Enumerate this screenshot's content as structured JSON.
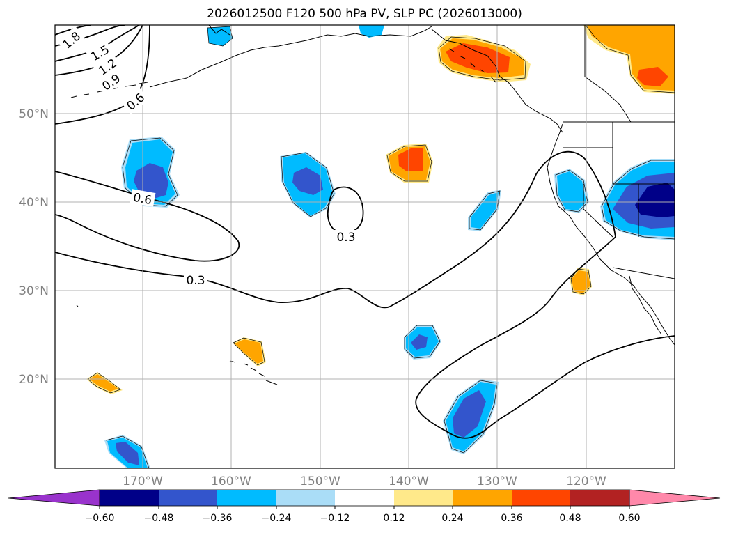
{
  "title": "2026012500 F120 500 hPa PV, SLP PC (2026013000)",
  "lat_labels": [
    "50°N",
    "40°N",
    "30°N",
    "20°N"
  ],
  "lon_labels": [
    "170°W",
    "160°W",
    "150°W",
    "140°W",
    "130°W",
    "120°W"
  ],
  "contour_labels": [
    "1.8",
    "1.5",
    "1.2",
    "0.9",
    "0.6",
    "0.6",
    "0.3",
    "0.3"
  ],
  "colorbar": {
    "ticks": [
      "−0.60",
      "−0.48",
      "−0.36",
      "−0.24",
      "−0.12",
      "0.12",
      "0.24",
      "0.36",
      "0.48",
      "0.60"
    ],
    "colors": [
      "#9933cc",
      "#000088",
      "#3355cc",
      "#00bbff",
      "#aaddf7",
      "#ffffff",
      "#ffe98a",
      "#ffa500",
      "#ff4500",
      "#b22222",
      "#ff88aa",
      "#ff88aa"
    ],
    "extend": "both"
  }
}
